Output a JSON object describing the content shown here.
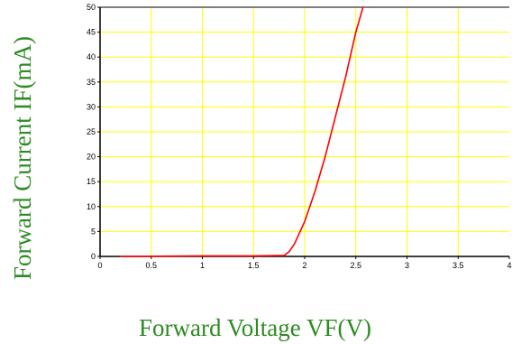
{
  "chart_data": {
    "type": "line",
    "title": "",
    "xlabel": "Forward Voltage  VF(V)",
    "ylabel": "Forward Current  IF(mA)",
    "xlim": [
      0,
      4
    ],
    "ylim": [
      0,
      50
    ],
    "x_ticks": [
      0,
      0.5,
      1,
      1.5,
      2,
      2.5,
      3,
      3.5,
      4
    ],
    "y_ticks": [
      0,
      5,
      10,
      15,
      20,
      25,
      30,
      35,
      40,
      45,
      50
    ],
    "x_tick_labels": [
      "0",
      "0.5",
      "1",
      "1.5",
      "2",
      "2.5",
      "3",
      "3.5",
      "4"
    ],
    "y_tick_labels": [
      "0",
      "5",
      "10",
      "15",
      "20",
      "25",
      "30",
      "35",
      "40",
      "45",
      "50"
    ],
    "grid": true,
    "grid_color": "#ffff00",
    "line_color": "#ff0000",
    "label_color": "#2e8b22",
    "series": [
      {
        "points": [
          [
            0.2,
            0
          ],
          [
            1.0,
            0.1
          ],
          [
            1.5,
            0.1
          ],
          [
            1.8,
            0.2
          ],
          [
            1.85,
            1
          ],
          [
            1.9,
            2.5
          ],
          [
            2.0,
            7
          ],
          [
            2.1,
            13
          ],
          [
            2.2,
            20
          ],
          [
            2.3,
            28
          ],
          [
            2.4,
            36
          ],
          [
            2.5,
            45
          ],
          [
            2.57,
            50
          ]
        ]
      }
    ]
  }
}
